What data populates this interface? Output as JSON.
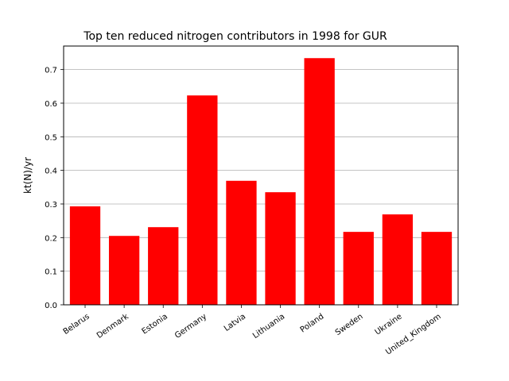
{
  "chart_data": {
    "type": "bar",
    "title": "Top ten reduced nitrogen contributors in 1998 for  GUR",
    "xlabel": "",
    "ylabel": "kt(N)/yr",
    "categories": [
      "Belarus",
      "Denmark",
      "Estonia",
      "Germany",
      "Latvia",
      "Lithuania",
      "Poland",
      "Sweden",
      "Ukraine",
      "United_Kingdom"
    ],
    "values": [
      0.293,
      0.205,
      0.231,
      0.623,
      0.369,
      0.335,
      0.734,
      0.217,
      0.269,
      0.217
    ],
    "ylim": [
      0,
      0.77
    ],
    "yticks": [
      "0.0",
      "0.1",
      "0.2",
      "0.3",
      "0.4",
      "0.5",
      "0.6",
      "0.7"
    ],
    "bar_color": "#ff0000",
    "grid": "horizontal"
  }
}
